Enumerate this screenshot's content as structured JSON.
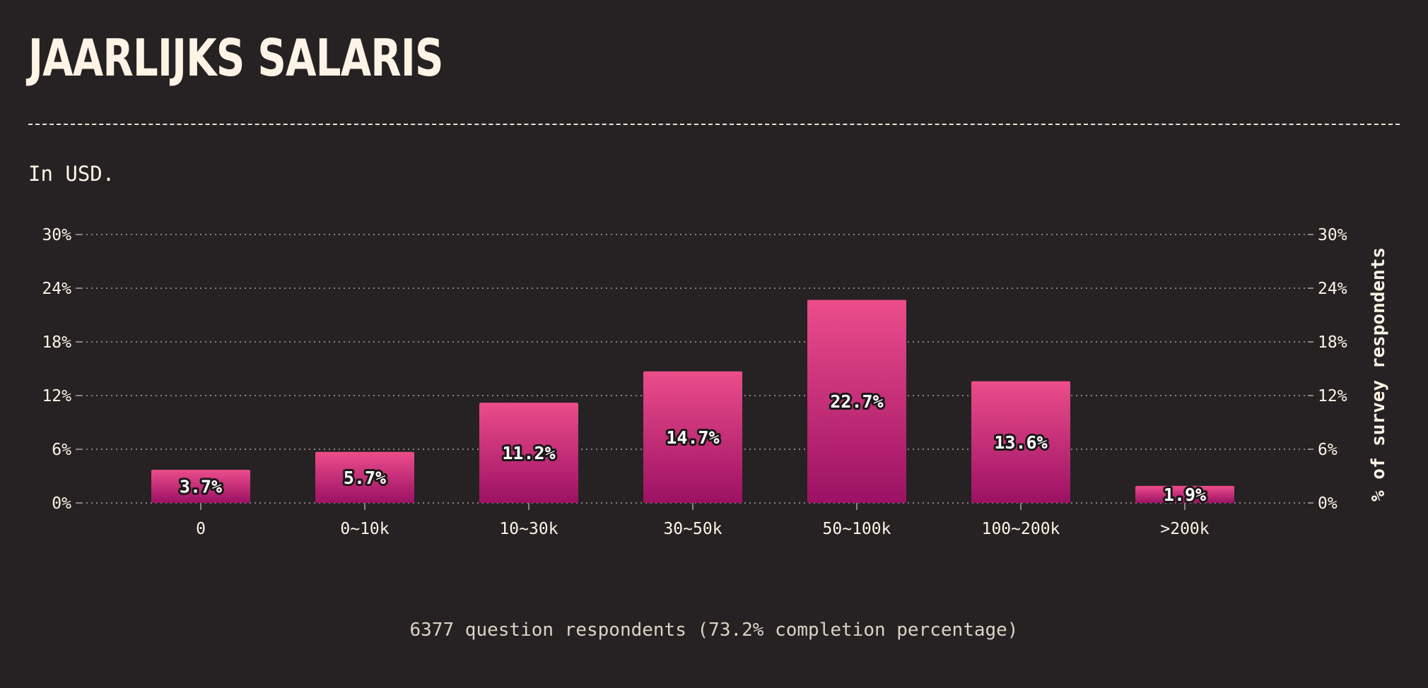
{
  "title": "JAARLIJKS SALARIS",
  "subtitle": "In USD.",
  "footnote": "6377 question respondents (73.2% completion percentage)",
  "colors": {
    "background": "#262223",
    "bar_top": "#ec4d8b",
    "bar_bottom": "#9c1164",
    "text": "#fdf4e6",
    "grid": "#8a8283"
  },
  "chart_data": {
    "type": "bar",
    "categories": [
      "0",
      "0~10k",
      "10~30k",
      "30~50k",
      "50~100k",
      "100~200k",
      ">200k"
    ],
    "values": [
      3.7,
      5.7,
      11.2,
      14.7,
      22.7,
      13.6,
      1.9
    ],
    "data_labels": [
      "3.7%",
      "5.7%",
      "11.2%",
      "14.7%",
      "22.7%",
      "13.6%",
      "1.9%"
    ],
    "yticks": [
      0,
      6,
      12,
      18,
      24,
      30
    ],
    "ytick_labels": [
      "0%",
      "6%",
      "12%",
      "18%",
      "24%",
      "30%"
    ],
    "ylim": [
      0,
      30
    ],
    "xlabel": "",
    "ylabel": "% of survey respondents",
    "ylabel_side": "right",
    "grid": true,
    "legend": "none"
  }
}
